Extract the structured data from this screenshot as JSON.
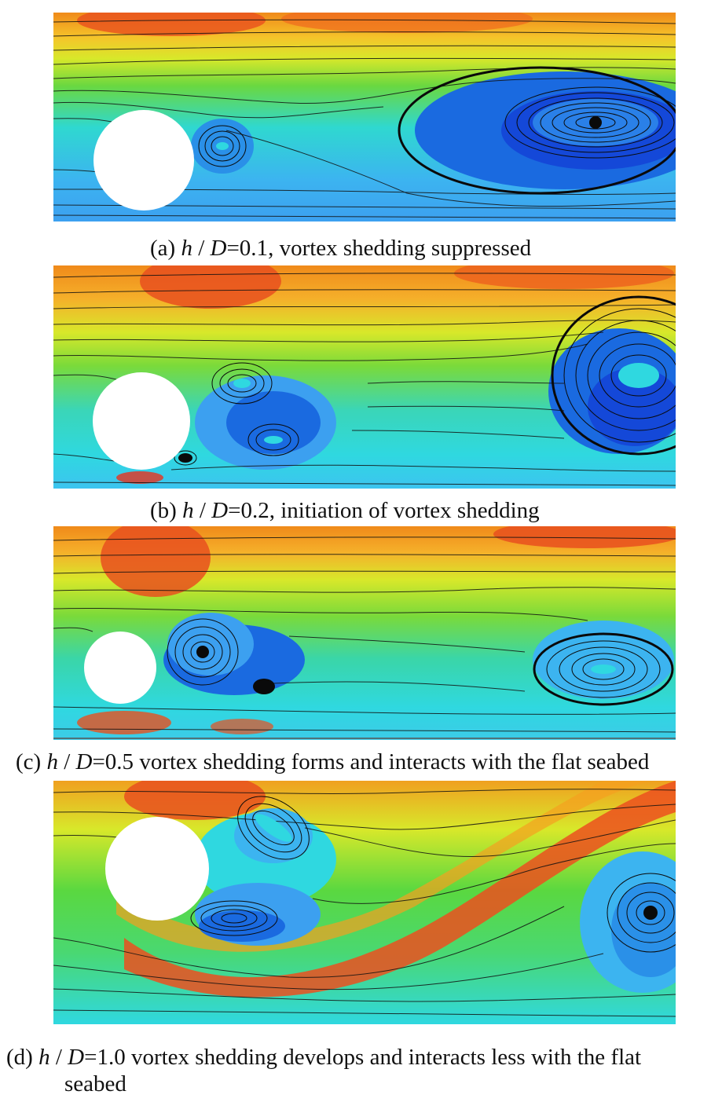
{
  "figure": {
    "panels": [
      {
        "id": "a",
        "label": "(a)",
        "ratio": "h / D",
        "ratio_h": "h",
        "ratio_sep": " / ",
        "ratio_D": "D",
        "value": "=0.1",
        "description": ", vortex shedding suppressed"
      },
      {
        "id": "b",
        "label": "(b)",
        "ratio_h": "h",
        "ratio_sep": " / ",
        "ratio_D": "D",
        "value": "=0.2",
        "description": ", initiation of vortex shedding"
      },
      {
        "id": "c",
        "label": "(c)",
        "ratio_h": "h",
        "ratio_sep": " / ",
        "ratio_D": "D",
        "value": "=0.5",
        "description": " vortex shedding forms and interacts with the flat seabed"
      },
      {
        "id": "d",
        "label": "(d)",
        "ratio_h": "h",
        "ratio_sep": " / ",
        "ratio_D": "D",
        "value": "=1.0",
        "description": " vortex shedding develops and interacts less with the flat",
        "description_line2": "seabed"
      }
    ],
    "colors": {
      "red": "#e8321e",
      "orange": "#f08a1a",
      "yellow": "#f5e22a",
      "lime": "#a8e02a",
      "green": "#4cd24a",
      "cyan": "#2fd8e0",
      "light_blue": "#3cb4f0",
      "blue": "#1a6ae0",
      "dark_blue": "#0a30d0",
      "streamline": "#111111"
    }
  }
}
